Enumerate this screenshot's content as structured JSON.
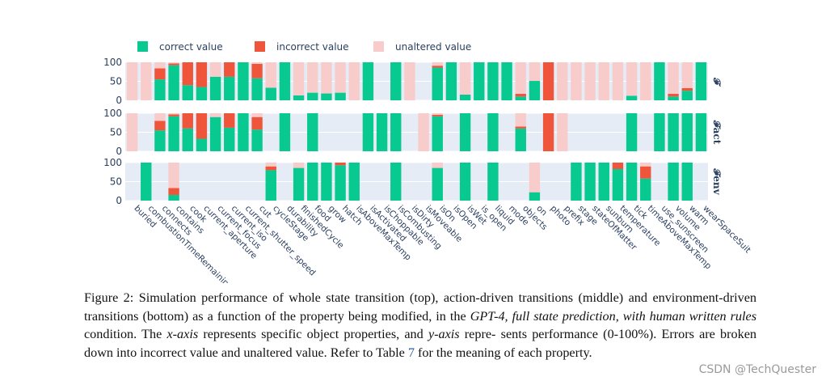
{
  "chart_data": {
    "type": "bar",
    "stacked": true,
    "legend": {
      "placement": "top-left",
      "entries": [
        {
          "name": "correct value",
          "color": "#08c98f"
        },
        {
          "name": "incorrect value",
          "color": "#ef553b"
        },
        {
          "name": "unaltered value",
          "color": "#f9cccc"
        }
      ]
    },
    "categories": [
      "buried",
      "combustionTimeRemaining",
      "connects",
      "contains",
      "cook",
      "current_aperture",
      "current_focus",
      "current_iso",
      "current_shutter_speed",
      "cut",
      "cycleStage",
      "durability",
      "finishedCycle",
      "food",
      "grow",
      "hatch",
      "isAboveMaxTemp",
      "isActivated",
      "isChoppable",
      "isCombusting",
      "isDirty",
      "isMoveable",
      "isOn",
      "isOpen",
      "isWet",
      "is_open",
      "liquid",
      "mode",
      "objects",
      "on",
      "photo",
      "prefix",
      "stage",
      "stateOfMatter",
      "sunburn",
      "temperature",
      "tick",
      "timeAboveMaxTemp",
      "use_sunscreen",
      "volume",
      "warm",
      "wearSpaceSuit"
    ],
    "yticks": [
      0,
      50,
      100
    ],
    "ylim": [
      0,
      100
    ],
    "plot_background": "#e5ecf6",
    "panels": [
      {
        "label": "𝓕",
        "correct": [
          0,
          0,
          55,
          92,
          40,
          35,
          62,
          62,
          100,
          58,
          33,
          100,
          13,
          20,
          18,
          20,
          0,
          100,
          0,
          100,
          0,
          0,
          86,
          100,
          15,
          100,
          100,
          100,
          10,
          51,
          0,
          0,
          0,
          0,
          0,
          0,
          12,
          0,
          100,
          10,
          25,
          100
        ],
        "incorrect": [
          0,
          0,
          29,
          5,
          60,
          65,
          0,
          38,
          0,
          38,
          0,
          0,
          0,
          0,
          0,
          0,
          0,
          0,
          0,
          0,
          0,
          0,
          5,
          0,
          0,
          0,
          0,
          0,
          7,
          0,
          100,
          0,
          0,
          0,
          0,
          0,
          0,
          0,
          0,
          7,
          7,
          0
        ],
        "unaltered": [
          100,
          100,
          16,
          3,
          0,
          0,
          38,
          0,
          0,
          4,
          67,
          0,
          87,
          80,
          82,
          80,
          100,
          0,
          0,
          0,
          100,
          0,
          9,
          0,
          85,
          0,
          0,
          0,
          83,
          49,
          0,
          100,
          100,
          100,
          100,
          100,
          88,
          100,
          0,
          83,
          68,
          0
        ]
      },
      {
        "label": "𝓕act",
        "correct": [
          0,
          null,
          55,
          92,
          60,
          33,
          90,
          62,
          100,
          57,
          null,
          100,
          null,
          100,
          null,
          null,
          null,
          100,
          100,
          100,
          null,
          0,
          92,
          null,
          100,
          null,
          100,
          null,
          60,
          null,
          0,
          0,
          null,
          null,
          null,
          null,
          100,
          null,
          100,
          100,
          100,
          100
        ],
        "incorrect": [
          0,
          null,
          25,
          5,
          40,
          67,
          0,
          38,
          0,
          33,
          null,
          0,
          null,
          0,
          null,
          null,
          null,
          0,
          0,
          0,
          null,
          0,
          4,
          null,
          0,
          null,
          0,
          null,
          5,
          null,
          100,
          0,
          null,
          null,
          null,
          null,
          0,
          null,
          0,
          0,
          0,
          0
        ],
        "unaltered": [
          100,
          null,
          20,
          3,
          0,
          0,
          10,
          0,
          0,
          10,
          null,
          0,
          null,
          0,
          null,
          null,
          null,
          0,
          0,
          0,
          null,
          100,
          4,
          null,
          0,
          null,
          0,
          null,
          35,
          null,
          0,
          100,
          null,
          null,
          null,
          null,
          0,
          null,
          0,
          0,
          0,
          0
        ]
      },
      {
        "label": "𝓕env",
        "correct": [
          null,
          100,
          null,
          15,
          null,
          null,
          null,
          null,
          null,
          null,
          80,
          null,
          86,
          100,
          100,
          93,
          100,
          null,
          null,
          100,
          null,
          null,
          86,
          null,
          100,
          null,
          100,
          null,
          null,
          22,
          null,
          null,
          100,
          100,
          100,
          83,
          100,
          58,
          null,
          100,
          100,
          null
        ],
        "incorrect": [
          null,
          0,
          null,
          18,
          null,
          null,
          null,
          null,
          null,
          null,
          10,
          null,
          0,
          0,
          0,
          7,
          0,
          null,
          null,
          0,
          null,
          null,
          0,
          null,
          0,
          null,
          0,
          null,
          null,
          0,
          null,
          null,
          0,
          0,
          0,
          17,
          0,
          32,
          null,
          0,
          0,
          null
        ],
        "unaltered": [
          null,
          0,
          null,
          67,
          null,
          null,
          null,
          null,
          null,
          null,
          10,
          null,
          14,
          0,
          0,
          0,
          0,
          null,
          null,
          0,
          null,
          null,
          14,
          null,
          0,
          null,
          0,
          null,
          null,
          78,
          null,
          null,
          0,
          0,
          0,
          0,
          0,
          10,
          null,
          0,
          0,
          null
        ]
      }
    ]
  },
  "caption": {
    "line1": "Figure 2:  Simulation performance of whole state transition (top), action-driven transitions (middle) and",
    "line2": "environment-driven transitions (bottom) as a function of the property being modified, in the ",
    "line2_italic": "GPT-4, full state",
    "line3_italic": "prediction, with human written rules",
    "line3_a": " condition. The ",
    "line3_x": "x-axis",
    "line3_b": " represents specific object properties, and ",
    "line3_y": "y-axis",
    "line3_c": " repre-",
    "line4_a": "sents performance (0-100%). Errors are broken down into incorrect value and unaltered value. Refer to Table ",
    "line4_ref": "7",
    "line4_b": " for",
    "line5": "the meaning of each property."
  },
  "watermark": "CSDN @TechQuester"
}
